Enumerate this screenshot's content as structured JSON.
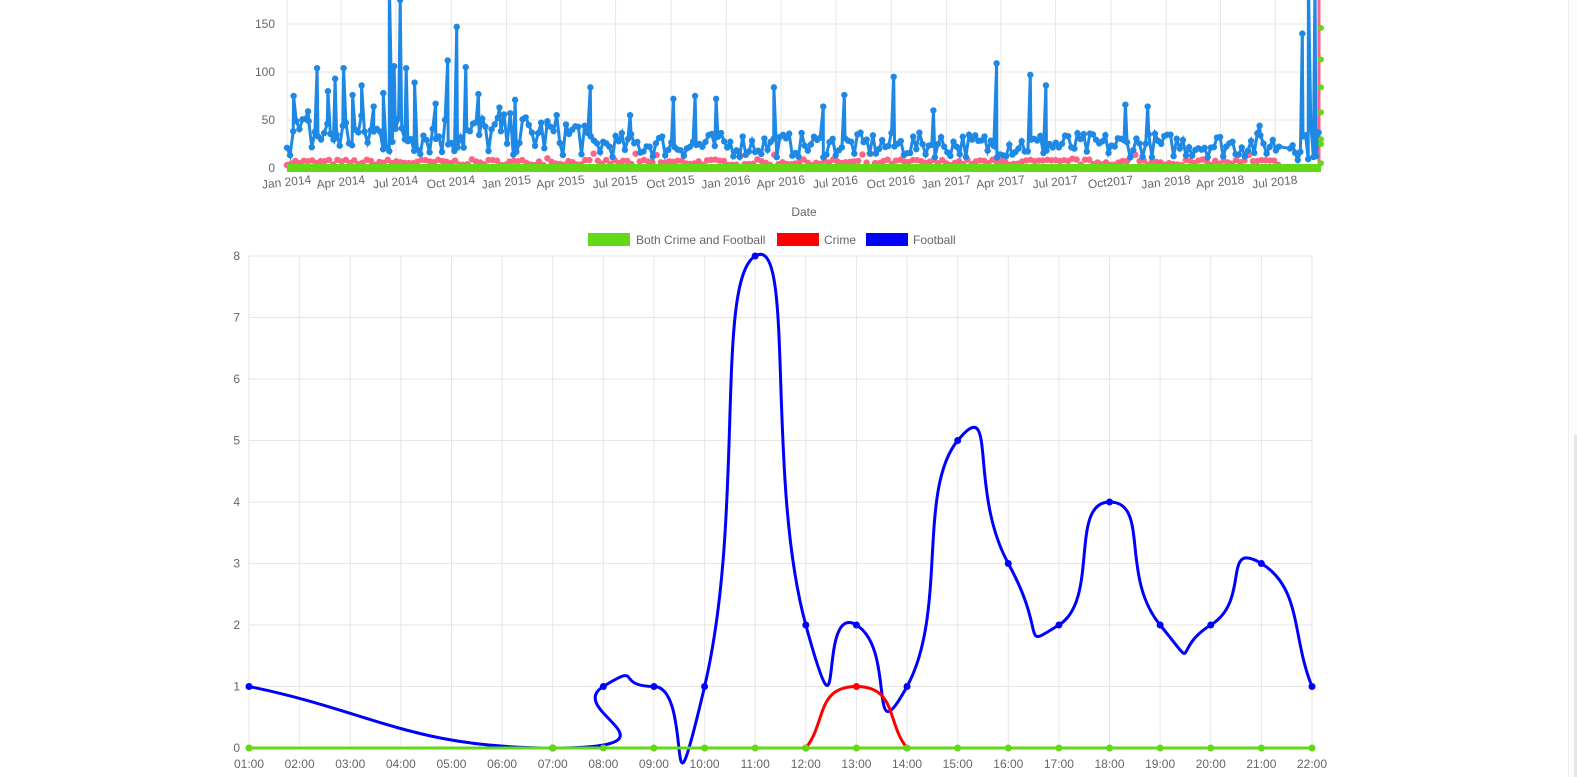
{
  "colors": {
    "both": "#62d816",
    "crime": "#ff0000",
    "football": "#0000ff",
    "top_football": "#1e88e5",
    "top_crime": "#ff6384",
    "top_both": "#62d816",
    "grid": "#e6e6e6",
    "text": "#666666"
  },
  "chart_data": [
    {
      "type": "line",
      "xlabel": "Date",
      "x_ticks": [
        "Jan 2014",
        "Apr 2014",
        "Jul 2014",
        "Oct 2014",
        "Jan 2015",
        "Apr 2015",
        "Jul 2015",
        "Oct 2015",
        "Jan 2016",
        "Apr 2016",
        "Jul 2016",
        "Oct 2016",
        "Jan 2017",
        "Apr 2017",
        "Jul 2017",
        "Oct2017",
        "Jan 2018",
        "Apr 2018",
        "Jul 2018"
      ],
      "y_ticks": [
        "0",
        "50",
        "100",
        "150"
      ],
      "ylim": [
        0,
        175
      ],
      "xlim": [
        "2014-01-01",
        "2018-09-15"
      ],
      "grid": true,
      "series": [
        {
          "color_key": "top_football",
          "note_values_are_peaks": true,
          "peaks": [
            {
              "x": "2014-01-12",
              "y": 75
            },
            {
              "x": "2014-02-05",
              "y": 59
            },
            {
              "x": "2014-02-20",
              "y": 104
            },
            {
              "x": "2014-03-10",
              "y": 80
            },
            {
              "x": "2014-03-22",
              "y": 93
            },
            {
              "x": "2014-04-05",
              "y": 104
            },
            {
              "x": "2014-04-20",
              "y": 76
            },
            {
              "x": "2014-05-05",
              "y": 86
            },
            {
              "x": "2014-05-25",
              "y": 64
            },
            {
              "x": "2014-06-10",
              "y": 78
            },
            {
              "x": "2014-06-20",
              "y": 240
            },
            {
              "x": "2014-06-28",
              "y": 106
            },
            {
              "x": "2014-07-08",
              "y": 175
            },
            {
              "x": "2014-07-18",
              "y": 104
            },
            {
              "x": "2014-08-01",
              "y": 89
            },
            {
              "x": "2014-09-05",
              "y": 67
            },
            {
              "x": "2014-09-25",
              "y": 112
            },
            {
              "x": "2014-10-10",
              "y": 147
            },
            {
              "x": "2014-10-25",
              "y": 105
            },
            {
              "x": "2014-11-15",
              "y": 77
            },
            {
              "x": "2014-12-20",
              "y": 63
            },
            {
              "x": "2015-01-15",
              "y": 71
            },
            {
              "x": "2015-03-10",
              "y": 45
            },
            {
              "x": "2015-05-20",
              "y": 84
            },
            {
              "x": "2015-07-25",
              "y": 55
            },
            {
              "x": "2015-10-05",
              "y": 72
            },
            {
              "x": "2015-11-10",
              "y": 75
            },
            {
              "x": "2015-12-15",
              "y": 72
            },
            {
              "x": "2016-03-20",
              "y": 84
            },
            {
              "x": "2016-06-10",
              "y": 64
            },
            {
              "x": "2016-07-15",
              "y": 76
            },
            {
              "x": "2016-10-05",
              "y": 95
            },
            {
              "x": "2016-12-10",
              "y": 60
            },
            {
              "x": "2017-03-25",
              "y": 109
            },
            {
              "x": "2017-05-20",
              "y": 97
            },
            {
              "x": "2017-06-15",
              "y": 86
            },
            {
              "x": "2017-10-25",
              "y": 66
            },
            {
              "x": "2017-12-01",
              "y": 64
            },
            {
              "x": "2018-06-05",
              "y": 44
            },
            {
              "x": "2018-08-15",
              "y": 140
            },
            {
              "x": "2018-08-25",
              "y": 240
            },
            {
              "x": "2018-09-05",
              "y": 200
            }
          ]
        },
        {
          "color_key": "top_crime",
          "typical_range": [
            0,
            10
          ]
        },
        {
          "color_key": "top_both",
          "typical_range": [
            0,
            2
          ],
          "end_points": [
            146,
            113,
            84,
            58,
            30,
            25,
            5
          ]
        }
      ]
    },
    {
      "type": "line",
      "legend_position": "top",
      "categories": [
        "01:00",
        "02:00",
        "03:00",
        "04:00",
        "05:00",
        "06:00",
        "07:00",
        "08:00",
        "09:00",
        "10:00",
        "11:00",
        "12:00",
        "13:00",
        "14:00",
        "15:00",
        "16:00",
        "17:00",
        "18:00",
        "19:00",
        "20:00",
        "21:00",
        "22:00"
      ],
      "y_ticks": [
        "0",
        "1",
        "2",
        "3",
        "4",
        "5",
        "6",
        "7",
        "8"
      ],
      "ylim": [
        0,
        8
      ],
      "grid": true,
      "series": [
        {
          "name": "Both Crime and Football",
          "color_key": "both",
          "values": [
            0,
            null,
            null,
            null,
            null,
            null,
            0,
            0,
            0,
            0,
            0,
            0,
            0,
            0,
            0,
            0,
            0,
            0,
            0,
            0,
            0,
            0
          ]
        },
        {
          "name": "Crime",
          "color_key": "crime",
          "values": [
            null,
            null,
            null,
            null,
            null,
            null,
            null,
            null,
            null,
            null,
            null,
            0,
            1,
            0,
            null,
            null,
            null,
            null,
            null,
            null,
            null,
            null
          ]
        },
        {
          "name": "Football",
          "color_key": "football",
          "values": [
            1,
            null,
            null,
            null,
            null,
            null,
            0,
            1,
            1,
            1,
            8,
            2,
            2,
            1,
            5,
            3,
            2,
            4,
            2,
            2,
            3,
            1
          ]
        }
      ]
    }
  ]
}
